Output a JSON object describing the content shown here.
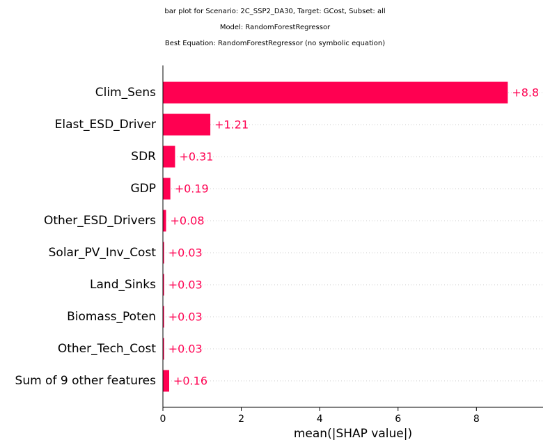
{
  "chart_data": {
    "type": "bar",
    "orientation": "horizontal",
    "title_lines": [
      "bar plot for Scenario: 2C_SSP2_DA30, Target: GCost, Subset: all",
      "Model: RandomForestRegressor",
      "Best Equation: RandomForestRegressor (no symbolic equation)"
    ],
    "categories": [
      "Clim_Sens",
      "Elast_ESD_Driver",
      "SDR",
      "GDP",
      "Other_ESD_Drivers",
      "Solar_PV_Inv_Cost",
      "Land_Sinks",
      "Biomass_Poten",
      "Other_Tech_Cost",
      "Sum of 9 other features"
    ],
    "values": [
      8.8,
      1.21,
      0.31,
      0.19,
      0.08,
      0.03,
      0.03,
      0.03,
      0.03,
      0.16
    ],
    "value_labels": [
      "+8.8",
      "+1.21",
      "+0.31",
      "+0.19",
      "+0.08",
      "+0.03",
      "+0.03",
      "+0.03",
      "+0.03",
      "+0.16"
    ],
    "xlabel": "mean(|SHAP value|)",
    "ylabel": "",
    "xlim": [
      0,
      9.7
    ],
    "xticks": [
      0,
      2,
      4,
      6,
      8
    ],
    "grid": "dotted horizontal row lines",
    "legend": "none",
    "bar_color": "#ff0051",
    "label_color": "#ff0051"
  }
}
